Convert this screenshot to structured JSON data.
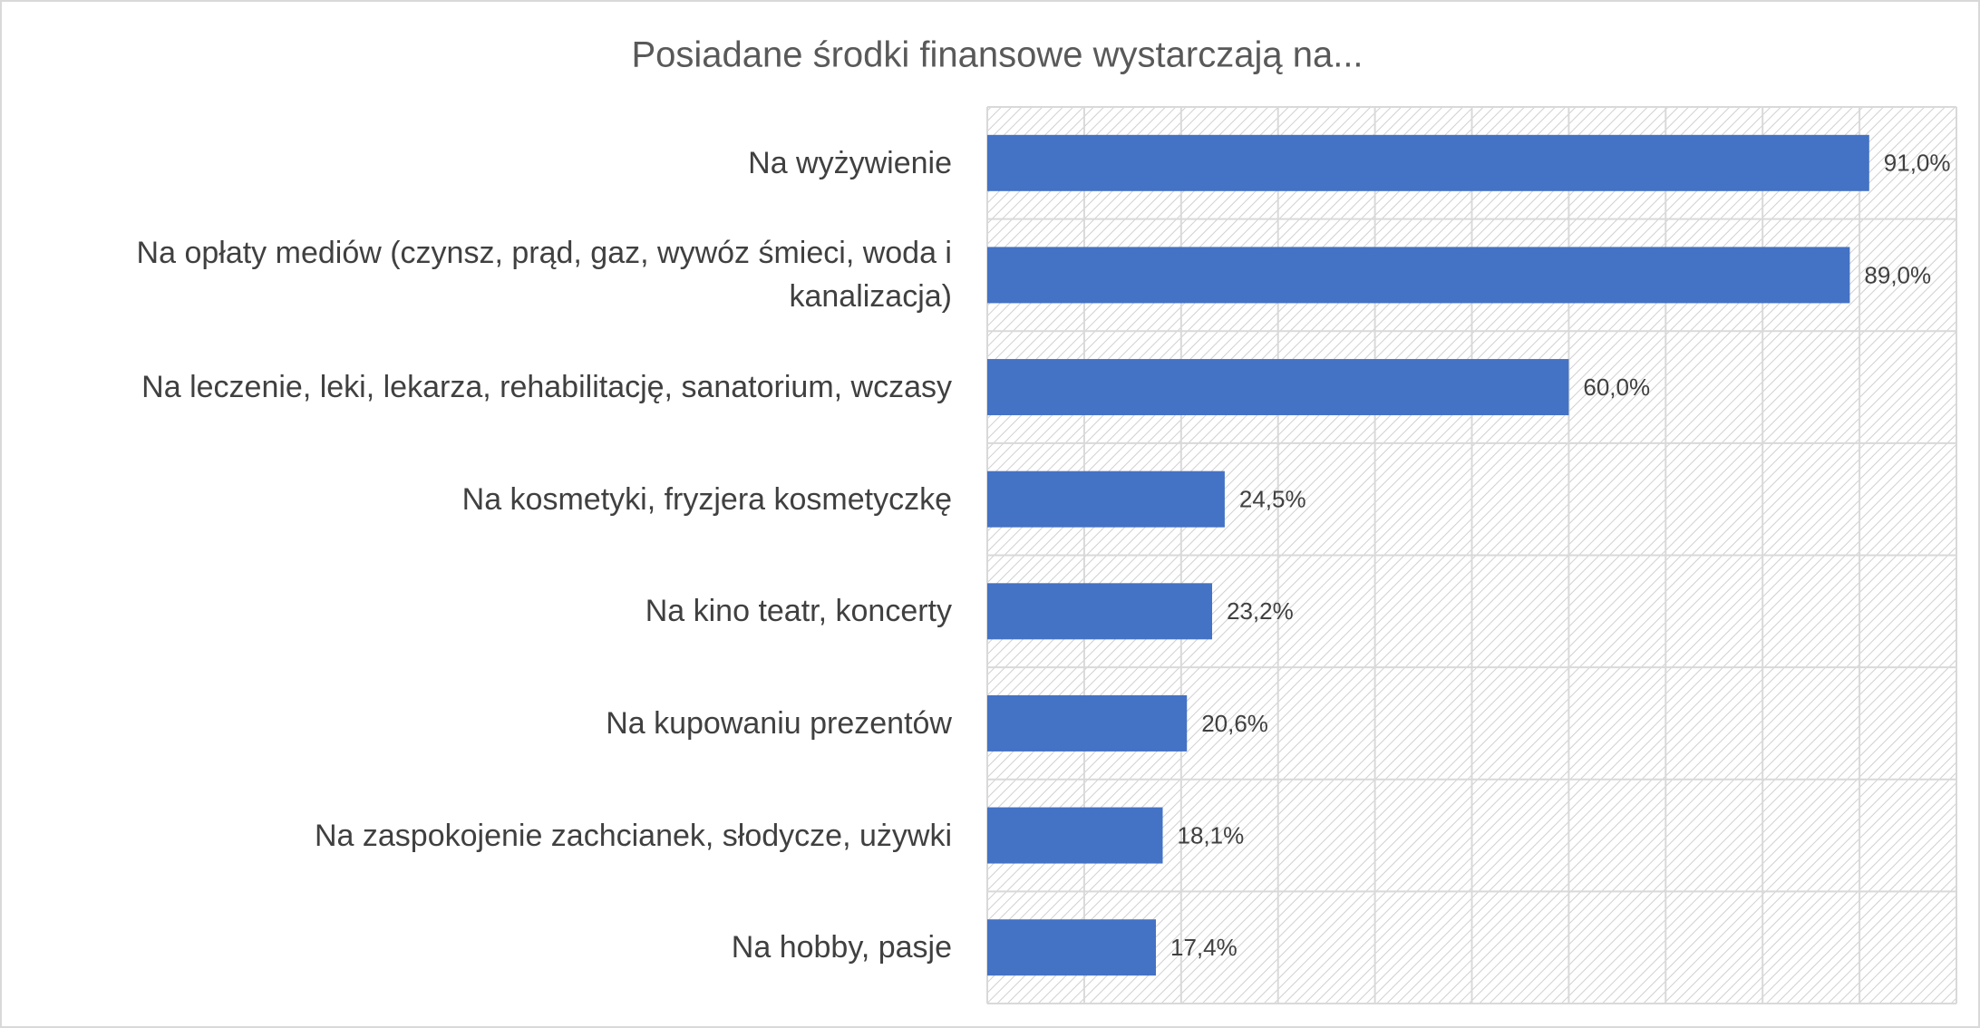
{
  "chart_data": {
    "type": "barh",
    "title": "Posiadane środki finansowe wystarczają na...",
    "categories": [
      "Na wyżywienie",
      "Na opłaty mediów (czynsz, prąd, gaz, wywóz śmieci, woda i kanalizacja)",
      "Na leczenie, leki, lekarza, rehabilitację, sanatorium, wczasy",
      "Na kosmetyki, fryzjera kosmetyczkę",
      "Na kino teatr, koncerty",
      "Na kupowaniu prezentów",
      "Na zaspokojenie zachcianek, słodycze, używki",
      "Na hobby, pasje"
    ],
    "values": [
      91.0,
      89.0,
      60.0,
      24.5,
      23.2,
      20.6,
      18.1,
      17.4
    ],
    "value_labels": [
      "91,0%",
      "89,0%",
      "60,0%",
      "24,5%",
      "23,2%",
      "20,6%",
      "18,1%",
      "17,4%"
    ],
    "color": "#4472c4",
    "xlim": [
      0,
      100
    ],
    "xticks": [
      0,
      10,
      20,
      30,
      40,
      50,
      60,
      70,
      80,
      90,
      100
    ],
    "grid": true
  }
}
